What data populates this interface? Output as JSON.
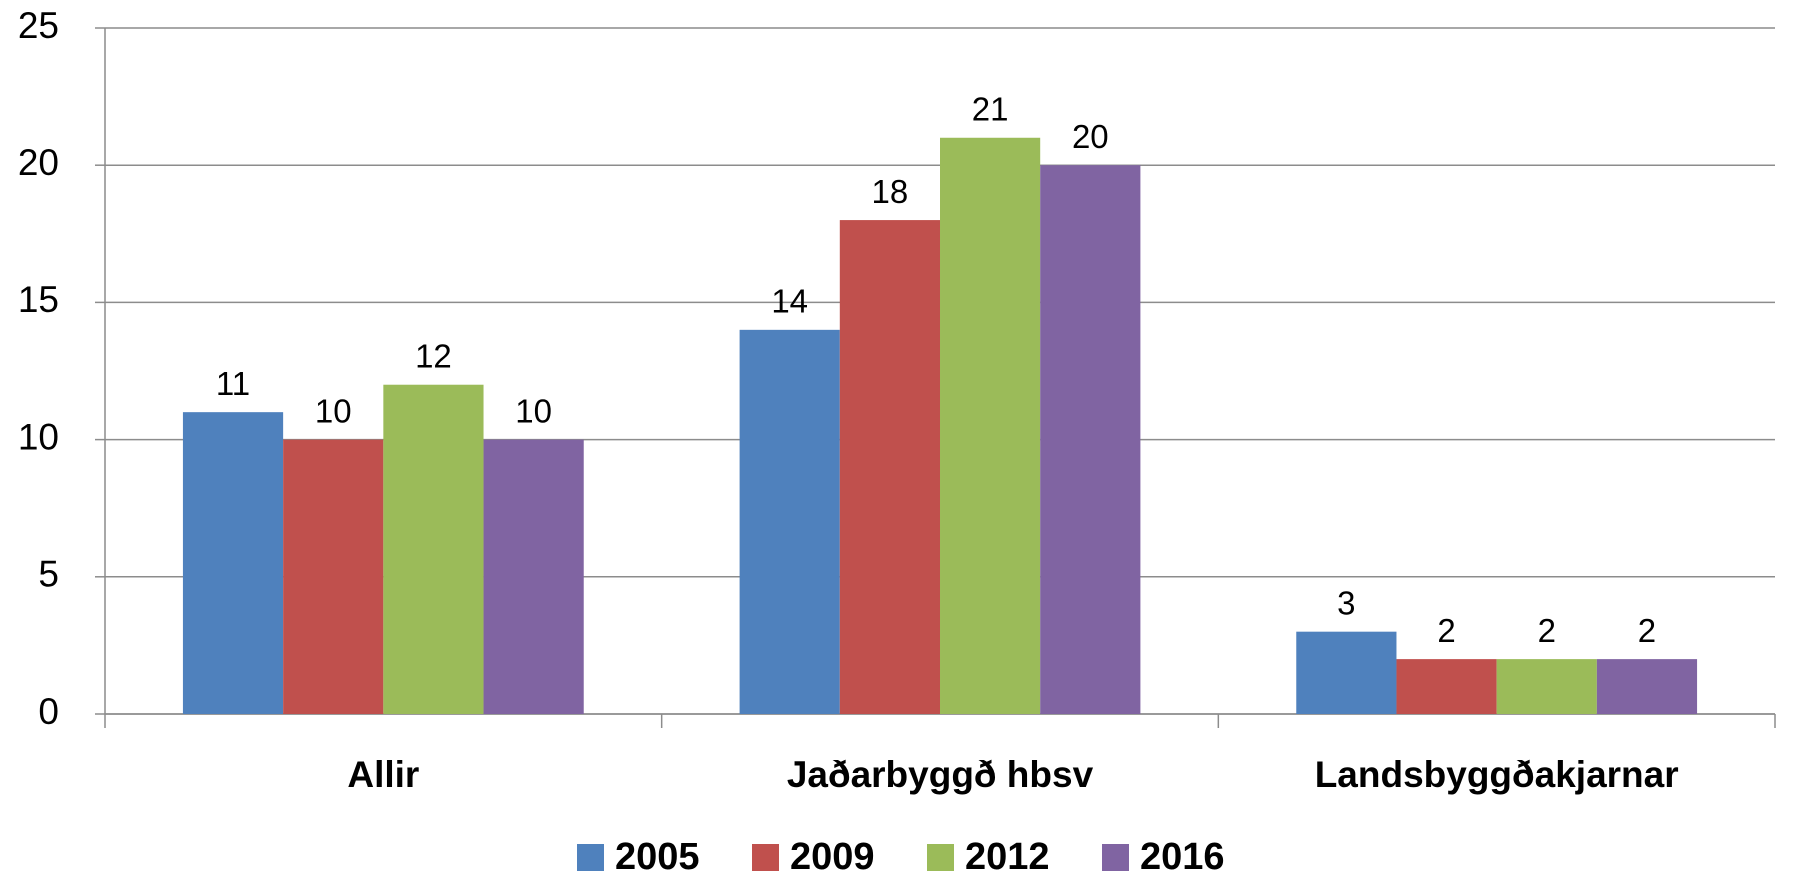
{
  "chart_data": {
    "type": "bar",
    "categories": [
      "Allir",
      "Jaðarbyggð hbsv",
      "Landsbyggðakjarnar"
    ],
    "series": [
      {
        "name": "2005",
        "color": "#4f81bd",
        "values": [
          11,
          14,
          3
        ]
      },
      {
        "name": "2009",
        "color": "#c0504d",
        "values": [
          10,
          18,
          2
        ]
      },
      {
        "name": "2012",
        "color": "#9bbb59",
        "values": [
          12,
          21,
          2
        ]
      },
      {
        "name": "2016",
        "color": "#8064a2",
        "values": [
          10,
          20,
          2
        ]
      }
    ],
    "ylim": [
      0,
      25
    ],
    "yticks": [
      0,
      5,
      10,
      15,
      20,
      25
    ],
    "grid": true,
    "legend": "bottom"
  }
}
